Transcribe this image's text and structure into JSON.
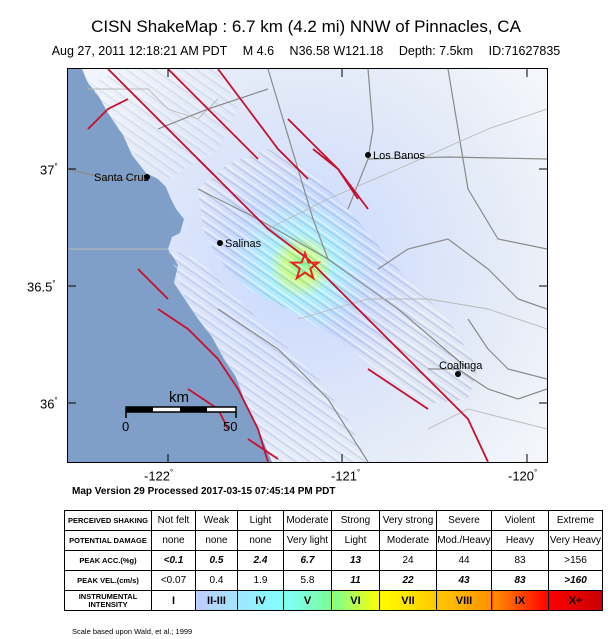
{
  "header": {
    "title": "CISN ShakeMap : 6.7 km (4.2 mi) NNW of Pinnacles, CA",
    "date": "Aug 27, 2011 12:18:21 AM PDT",
    "magnitude": "M 4.6",
    "location": "N36.58 W121.18",
    "depth": "Depth: 7.5km",
    "id": "ID:71627835"
  },
  "map": {
    "lat_labels": [
      "37",
      "36.5",
      "36"
    ],
    "lon_labels": [
      "-122",
      "-121",
      "-120"
    ],
    "degree_symbol": "°",
    "cities": {
      "santa_cruz": "Santa Cruz",
      "salinas": "Salinas",
      "los_banos": "Los Banos",
      "coalinga": "Coalinga"
    },
    "scale": {
      "unit": "km",
      "start": "0",
      "end": "50"
    },
    "epicenter": {
      "lat": 36.58,
      "lon": -121.18
    },
    "colors": {
      "ocean": "#7f9fc9",
      "epicenter": "#e8251f",
      "fault": "#c8102e",
      "road": "#8a8a8a"
    }
  },
  "processed": "Map Version 29 Processed 2017-03-15 07:45:14 PM PDT",
  "legend": {
    "rows": [
      {
        "label": "PERCEIVED SHAKING",
        "values": [
          "Not felt",
          "Weak",
          "Light",
          "Moderate",
          "Strong",
          "Very strong",
          "Severe",
          "Violent",
          "Extreme"
        ]
      },
      {
        "label": "POTENTIAL DAMAGE",
        "values": [
          "none",
          "none",
          "none",
          "Very light",
          "Light",
          "Moderate",
          "Mod./Heavy",
          "Heavy",
          "Very Heavy"
        ]
      },
      {
        "label": "PEAK ACC.(%g)",
        "values": [
          "<0.1",
          "0.5",
          "2.4",
          "6.7",
          "13",
          "24",
          "44",
          "83",
          ">156"
        ]
      },
      {
        "label": "PEAK VEL.(cm/s)",
        "values": [
          "<0.07",
          "0.4",
          "1.9",
          "5.8",
          "11",
          "22",
          "43",
          "83",
          ">160"
        ]
      },
      {
        "label": "INSTRUMENTAL INTENSITY",
        "values": [
          "I",
          "II-III",
          "IV",
          "V",
          "VI",
          "VII",
          "VIII",
          "IX",
          "X+"
        ]
      }
    ],
    "intensity_colors": [
      "#ffffff",
      "#bfccff",
      "#a0e6ff",
      "#80ffff",
      "#7aff93",
      "#ffff00",
      "#ffc800",
      "#ff9100",
      "#ff0000",
      "#c80000"
    ]
  },
  "footnote": "Scale based upon Wald, et al.; 1999"
}
